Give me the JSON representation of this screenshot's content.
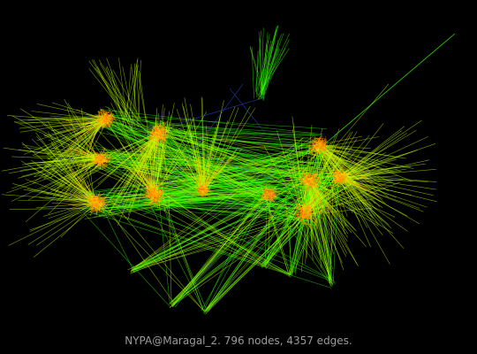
{
  "caption": "NYPA@Maragal_2. 796 nodes, 4357 edges.",
  "graph": {
    "node_count": 796,
    "edge_count": 4357,
    "background": "#000000",
    "palette": {
      "long_edge": "#33ff00",
      "mid_edge": "#bbff00",
      "short_edge": "#ffcc00",
      "dense_core": "#ff7a00",
      "sparse_link": "#3355ff"
    }
  }
}
